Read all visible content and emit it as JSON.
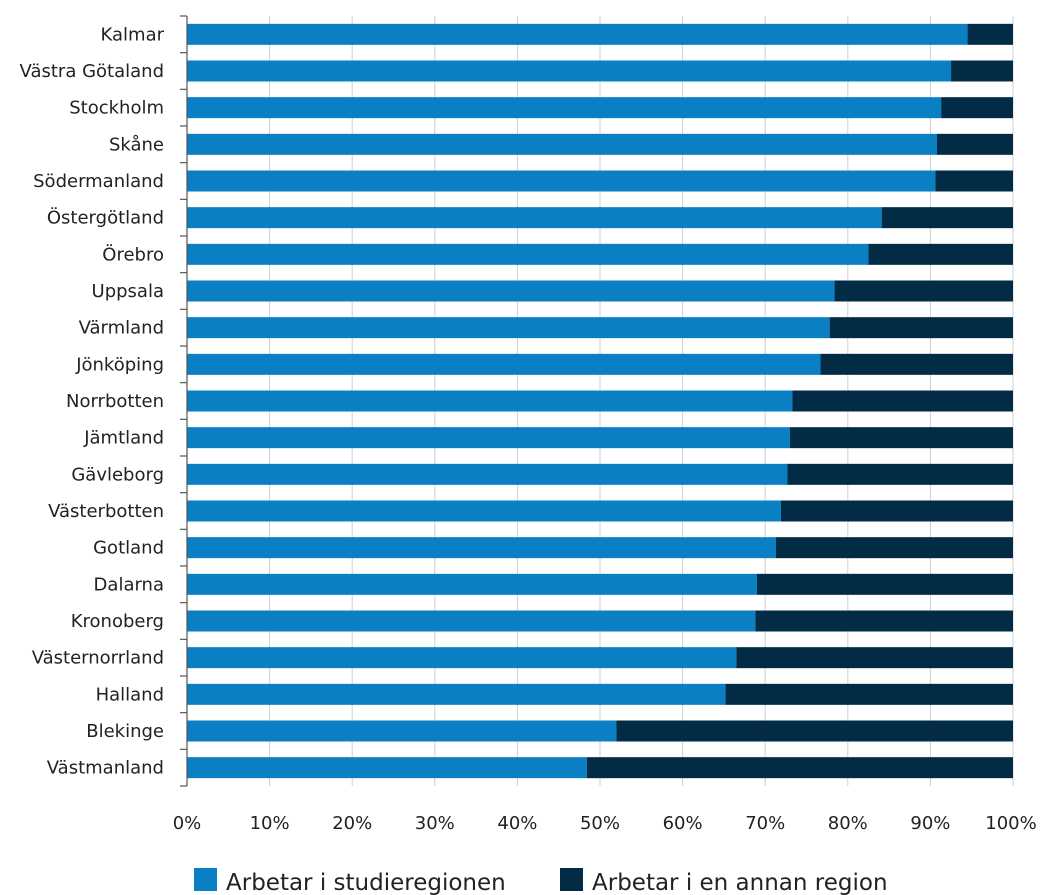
{
  "chart_data": {
    "type": "bar",
    "orientation": "horizontal",
    "stacked": true,
    "categories": [
      "Kalmar",
      "Västra Götaland",
      "Stockholm",
      "Skåne",
      "Södermanland",
      "Östergötland",
      "Örebro",
      "Uppsala",
      "Värmland",
      "Jönköping",
      "Norrbotten",
      "Jämtland",
      "Gävleborg",
      "Västerbotten",
      "Gotland",
      "Dalarna",
      "Kronoberg",
      "Västernorrland",
      "Halland",
      "Blekinge",
      "Västmanland"
    ],
    "series": [
      {
        "name": "Arbetar i studieregionen",
        "color": "#0a7fc4",
        "values": [
          94.5,
          92.5,
          91.3,
          90.8,
          90.6,
          84.1,
          82.5,
          78.4,
          77.8,
          76.7,
          73.3,
          73.0,
          72.7,
          71.9,
          71.3,
          69.0,
          68.8,
          66.5,
          65.2,
          52.0,
          48.4
        ]
      },
      {
        "name": "Arbetar i en annan region",
        "color": "#022b45",
        "values": [
          5.5,
          7.5,
          8.7,
          9.2,
          9.4,
          15.9,
          17.5,
          21.6,
          22.2,
          23.3,
          26.7,
          27.0,
          27.3,
          28.1,
          28.7,
          31.0,
          31.2,
          33.5,
          34.8,
          48.0,
          51.6
        ]
      }
    ],
    "xlim": [
      0,
      100
    ],
    "x_ticks": [
      "0%",
      "10%",
      "20%",
      "30%",
      "40%",
      "50%",
      "60%",
      "70%",
      "80%",
      "90%",
      "100%"
    ],
    "grid": true,
    "gridline_color": "#cfcfcf",
    "legend_position": "bottom"
  }
}
